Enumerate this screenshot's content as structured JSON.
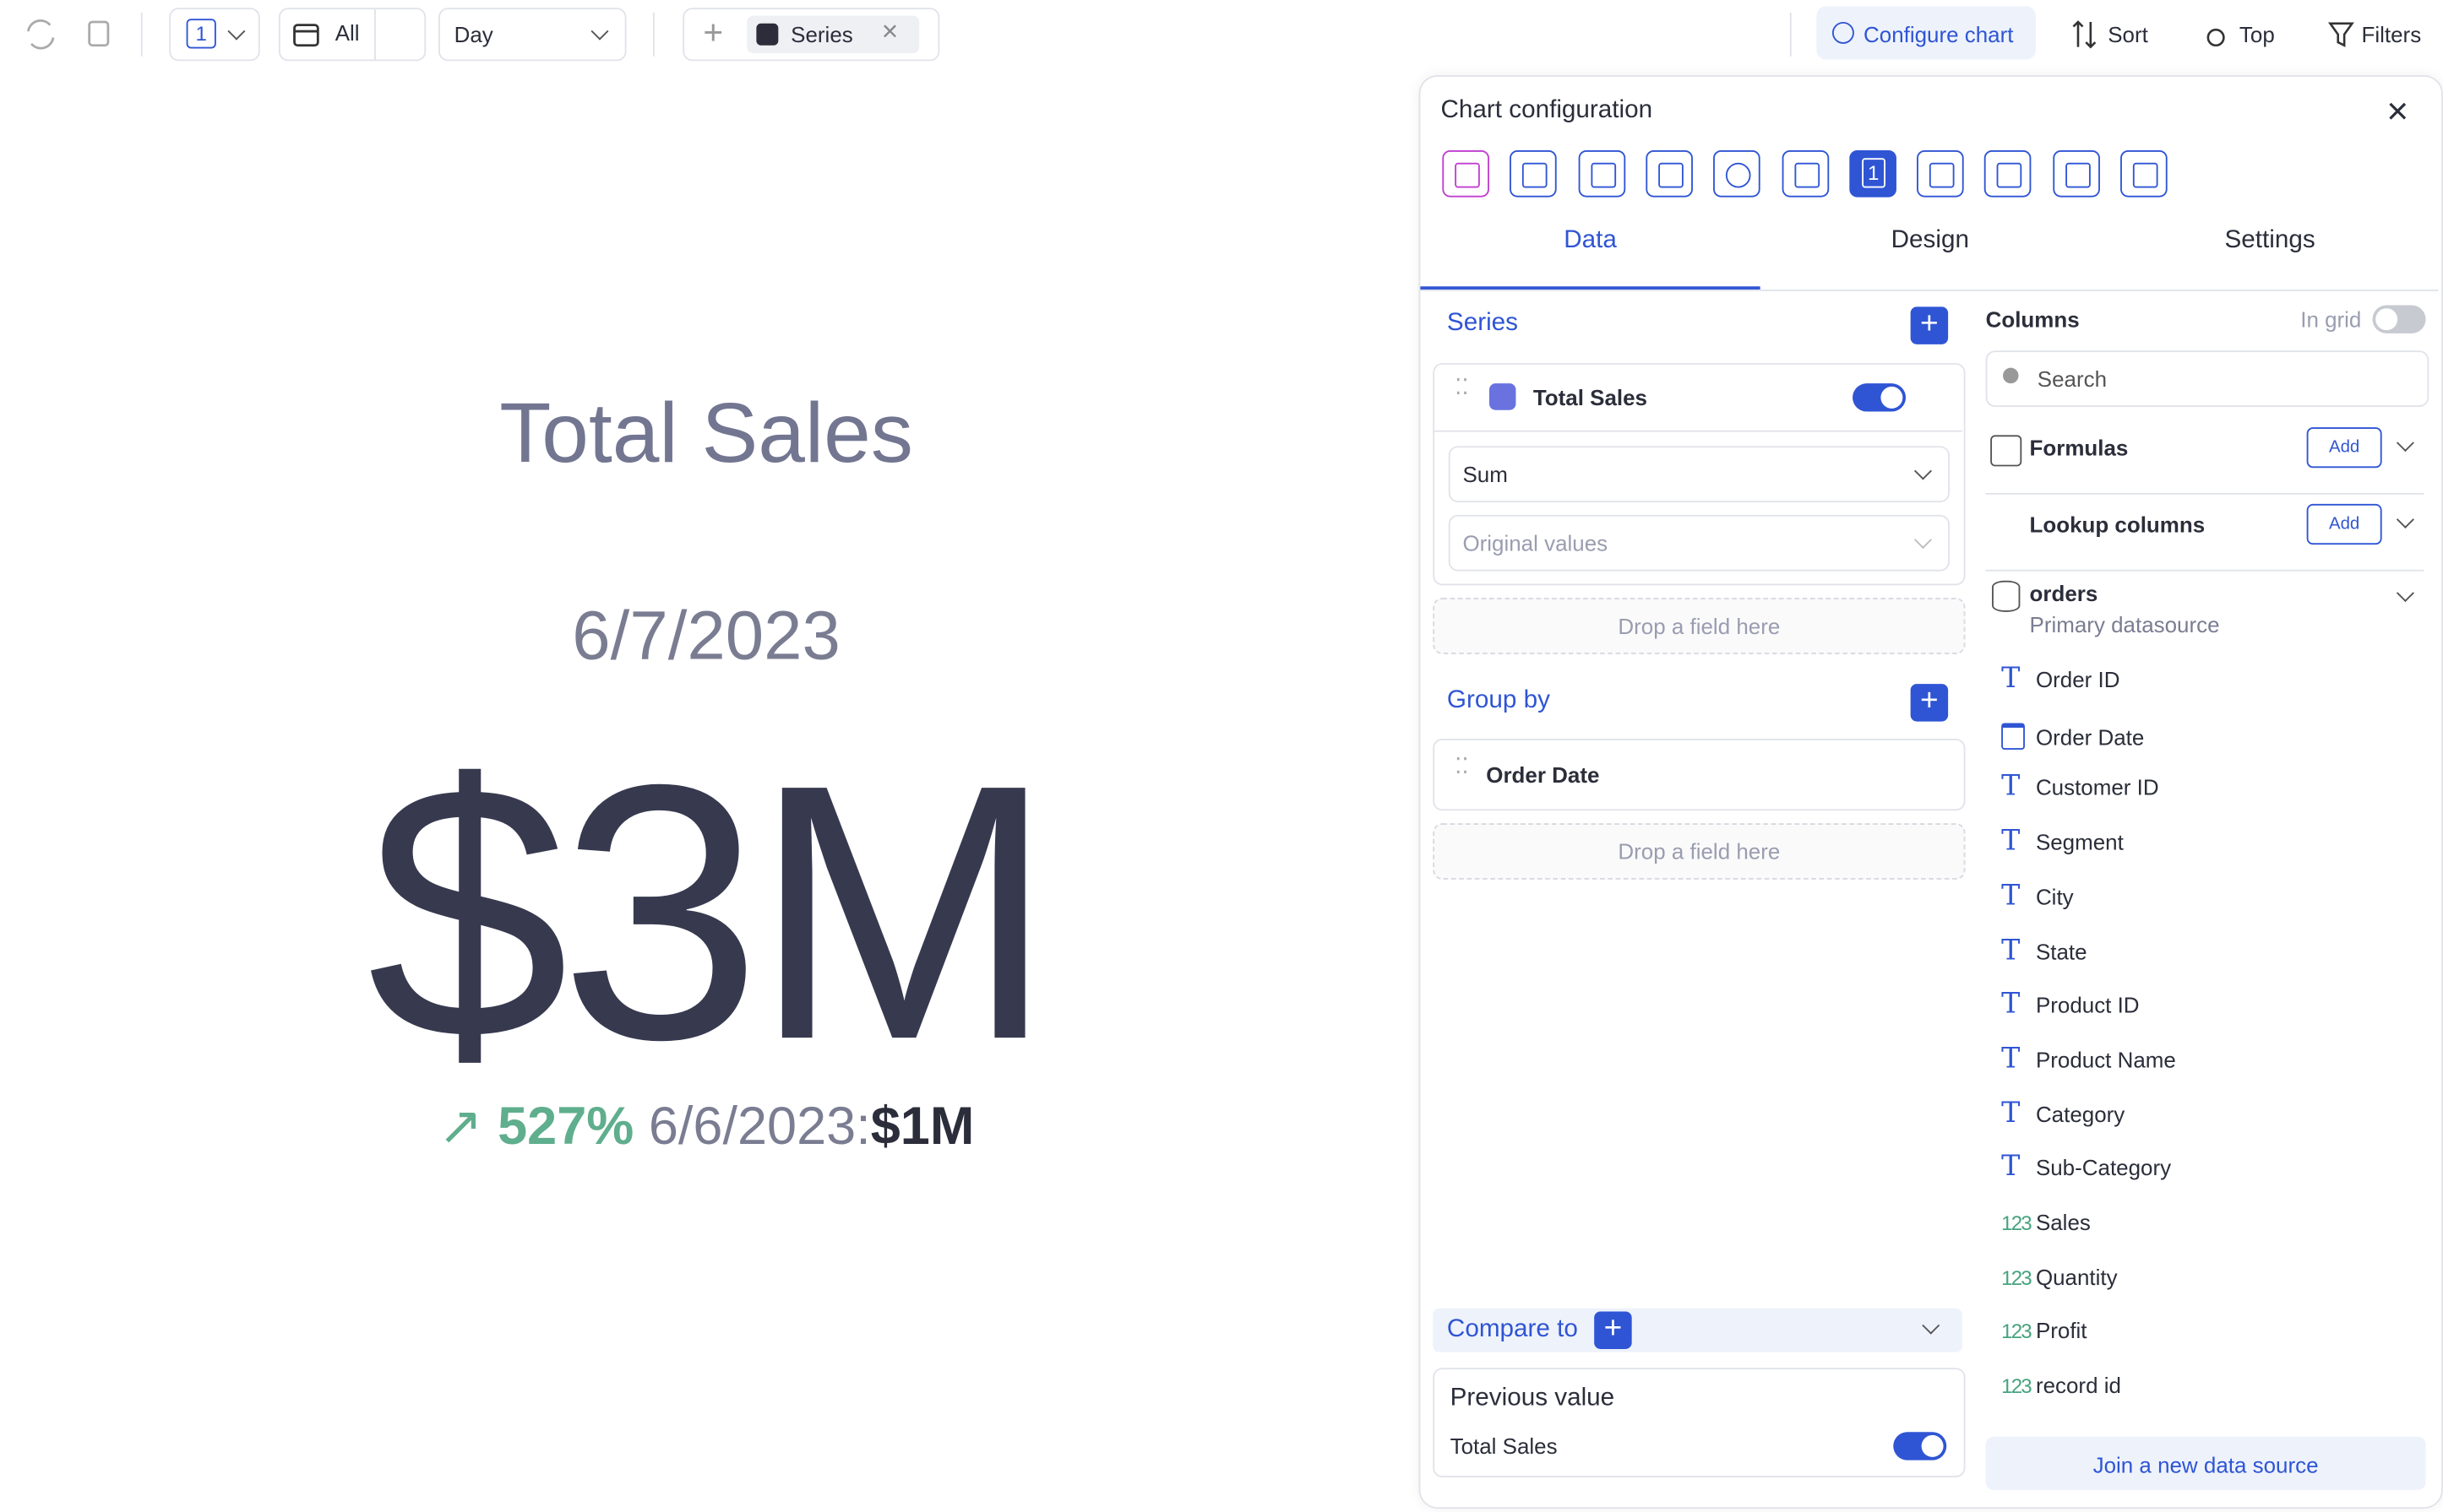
{
  "toolbar": {
    "page": "1",
    "range": "All",
    "granularity": "Day",
    "series_chip": "Series",
    "configure": "Configure chart",
    "sort": "Sort",
    "top": "Top",
    "filters": "Filters"
  },
  "kpi": {
    "title": "Total Sales",
    "date": "6/7/2023",
    "value": "$3M",
    "change": "527%",
    "compare_date": "6/6/2023:",
    "compare_value": "$1M"
  },
  "panel": {
    "title": "Chart configuration",
    "tabs": [
      "Data",
      "Design",
      "Settings"
    ],
    "series": {
      "heading": "Series",
      "item": "Total Sales",
      "aggregation": "Sum",
      "transform": "Original values",
      "drop": "Drop a field here"
    },
    "group_by": {
      "heading": "Group by",
      "item": "Order Date",
      "drop": "Drop a field here"
    },
    "compare": {
      "heading": "Compare to",
      "item_title": "Previous value",
      "item_series": "Total Sales"
    },
    "columns": {
      "heading": "Columns",
      "in_grid": "In grid",
      "search": "Search",
      "formulas": "Formulas",
      "lookup": "Lookup columns",
      "add": "Add",
      "source": "orders",
      "source_sub": "Primary datasource",
      "fields": [
        {
          "icon": "T",
          "name": "Order ID"
        },
        {
          "kind": "date",
          "name": "Order Date"
        },
        {
          "icon": "T",
          "name": "Customer ID"
        },
        {
          "icon": "T",
          "name": "Segment"
        },
        {
          "icon": "T",
          "name": "City"
        },
        {
          "icon": "T",
          "name": "State"
        },
        {
          "icon": "T",
          "name": "Product ID"
        },
        {
          "icon": "T",
          "name": "Product Name"
        },
        {
          "icon": "T",
          "name": "Category"
        },
        {
          "icon": "T",
          "name": "Sub-Category"
        },
        {
          "icon": "123",
          "name": "Sales"
        },
        {
          "icon": "123",
          "name": "Quantity"
        },
        {
          "icon": "123",
          "name": "Profit"
        },
        {
          "icon": "123",
          "name": "record id"
        }
      ],
      "join": "Join a new data source"
    }
  }
}
